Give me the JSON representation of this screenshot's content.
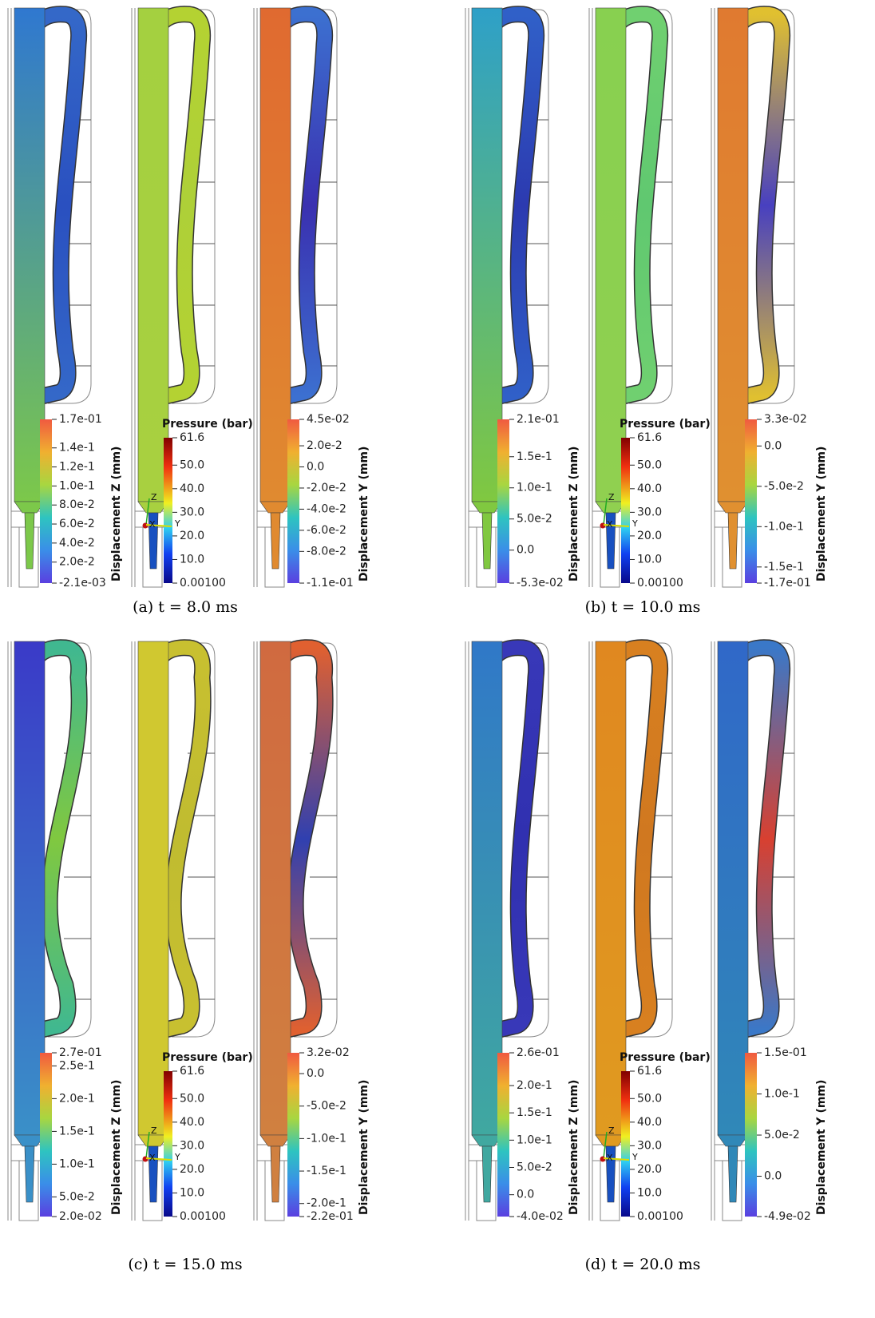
{
  "panels": [
    {
      "caption": "(a) t = 8.0 ms",
      "triad": [
        "Z",
        "X",
        "Y"
      ],
      "colorbars": [
        {
          "title": "Displacement Z (mm)",
          "ticks": [
            "1.7e-01",
            "1.4e-1",
            "1.2e-1",
            "1.0e-1",
            "8.0e-2",
            "6.0e-2",
            "4.0e-2",
            "2.0e-2",
            "-2.1e-03"
          ]
        },
        {
          "title": "Pressure (bar)",
          "ticks": [
            "61.6",
            "50.0",
            "40.0",
            "30.0",
            "20.0",
            "10.0",
            "0.00100"
          ]
        },
        {
          "title": "Displacement Y (mm)",
          "ticks": [
            "4.5e-02",
            "2.0e-2",
            "0.0",
            "-2.0e-2",
            "-4.0e-2",
            "-6.0e-2",
            "-8.0e-2",
            "-1.1e-01"
          ]
        }
      ]
    },
    {
      "caption": "(b) t = 10.0 ms",
      "triad": [
        "Z",
        "X",
        "Y"
      ],
      "colorbars": [
        {
          "title": "Displacement Z (mm)",
          "ticks": [
            "2.1e-01",
            "1.5e-1",
            "1.0e-1",
            "5.0e-2",
            "0.0",
            "-5.3e-02"
          ]
        },
        {
          "title": "Pressure (bar)",
          "ticks": [
            "61.6",
            "50.0",
            "40.0",
            "30.0",
            "20.0",
            "10.0",
            "0.00100"
          ]
        },
        {
          "title": "Displacement Y (mm)",
          "ticks": [
            "3.3e-02",
            "0.0",
            "-5.0e-2",
            "-1.0e-1",
            "-1.5e-1",
            "-1.7e-01"
          ]
        }
      ]
    },
    {
      "caption": "(c) t = 15.0 ms",
      "triad": [
        "Z",
        "X",
        "Y"
      ],
      "colorbars": [
        {
          "title": "Displacement Z (mm)",
          "ticks": [
            "2.7e-01",
            "2.5e-1",
            "2.0e-1",
            "1.5e-1",
            "1.0e-1",
            "5.0e-2",
            "2.0e-02"
          ]
        },
        {
          "title": "Pressure (bar)",
          "ticks": [
            "61.6",
            "50.0",
            "40.0",
            "30.0",
            "20.0",
            "10.0",
            "0.00100"
          ]
        },
        {
          "title": "Displacement Y (mm)",
          "ticks": [
            "3.2e-02",
            "0.0",
            "-5.0e-2",
            "-1.0e-1",
            "-1.5e-1",
            "-2.0e-1",
            "-2.2e-01"
          ]
        }
      ]
    },
    {
      "caption": "(d) t = 20.0 ms",
      "triad": [
        "Z",
        "X",
        "Y"
      ],
      "colorbars": [
        {
          "title": "Displacement Z (mm)",
          "ticks": [
            "2.6e-01",
            "2.0e-1",
            "1.5e-1",
            "1.0e-1",
            "5.0e-2",
            "0.0",
            "-4.0e-02"
          ]
        },
        {
          "title": "Pressure (bar)",
          "ticks": [
            "61.6",
            "50.0",
            "40.0",
            "30.0",
            "20.0",
            "10.0",
            "0.00100"
          ]
        },
        {
          "title": "Displacement Y (mm)",
          "ticks": [
            "1.5e-01",
            "1.0e-1",
            "5.0e-2",
            "0.0",
            "-4.9e-02"
          ]
        }
      ]
    }
  ]
}
